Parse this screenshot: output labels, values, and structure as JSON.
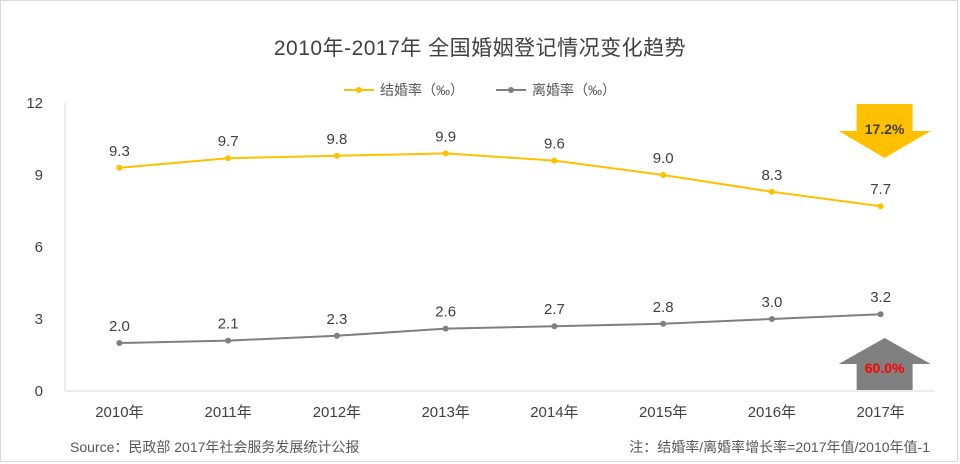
{
  "chart_data": {
    "type": "line",
    "title": "2010年-2017年 全国婚姻登记情况变化趋势",
    "categories": [
      "2010年",
      "2011年",
      "2012年",
      "2013年",
      "2014年",
      "2015年",
      "2016年",
      "2017年"
    ],
    "series": [
      {
        "name": "结婚率（‰）",
        "values": [
          9.3,
          9.7,
          9.8,
          9.9,
          9.6,
          9.0,
          8.3,
          7.7
        ],
        "labels": [
          "9.3",
          "9.7",
          "9.8",
          "9.9",
          "9.6",
          "9.0",
          "8.3",
          "7.7"
        ],
        "color": "#FFC000"
      },
      {
        "name": "离婚率（‰）",
        "values": [
          2.0,
          2.1,
          2.3,
          2.6,
          2.7,
          2.8,
          3.0,
          3.2
        ],
        "labels": [
          "2.0",
          "2.1",
          "2.3",
          "2.6",
          "2.7",
          "2.8",
          "3.0",
          "3.2"
        ],
        "color": "#7F7F7F"
      }
    ],
    "ylim": [
      0,
      12
    ],
    "yticks": [
      0,
      3,
      6,
      9,
      12
    ],
    "legend_position": "top-center",
    "grid": false,
    "annotations": [
      {
        "text": "17.2%",
        "direction": "down",
        "series": "结婚率（‰）",
        "arrow_color": "#FFC000",
        "text_color": "#404040"
      },
      {
        "text": "60.0%",
        "direction": "up",
        "series": "离婚率（‰）",
        "arrow_color": "#808080",
        "text_color": "#FF0000"
      }
    ]
  },
  "footer": {
    "source": "Source：民政部 2017年社会服务发展统计公报",
    "note": "注：结婚率/离婚率增长率=2017年值/2010年值-1"
  }
}
